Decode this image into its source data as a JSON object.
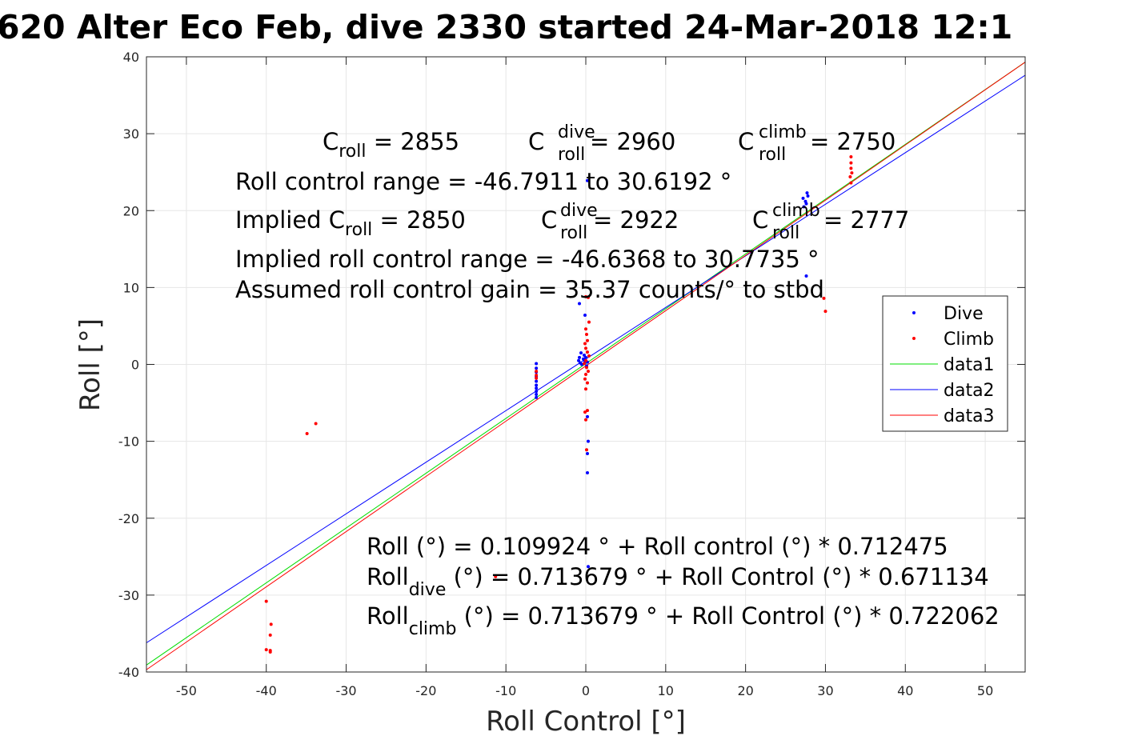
{
  "chart_data": {
    "type": "scatter",
    "title": "620 Alter Eco Feb, dive 2330 started 24-Mar-2018 12:1",
    "xlabel": "Roll Control [°]",
    "ylabel": "Roll [°]",
    "xlim": [
      -55,
      55
    ],
    "ylim": [
      -40,
      40
    ],
    "xticks": [
      -50,
      -40,
      -30,
      -20,
      -10,
      0,
      10,
      20,
      30,
      40,
      50
    ],
    "yticks": [
      -40,
      -30,
      -20,
      -10,
      0,
      10,
      20,
      30,
      40
    ],
    "grid": true,
    "legend_position": "right",
    "legend": [
      "Dive",
      "Climb",
      "data1",
      "data2",
      "data3"
    ],
    "colors": {
      "dive": "#0000ff",
      "climb": "#ff0000",
      "data1": "#00dd00",
      "data2": "#0000ff",
      "data3": "#ff0000",
      "grid": "#e6e6e6",
      "axis": "#262626"
    },
    "series": [
      {
        "name": "Dive",
        "kind": "points",
        "points": [
          [
            -6.2,
            0.1
          ],
          [
            -6.2,
            -0.5
          ],
          [
            -6.2,
            -1.0
          ],
          [
            -6.2,
            -1.6
          ],
          [
            -6.2,
            -2.2
          ],
          [
            -6.2,
            -2.7
          ],
          [
            -6.2,
            -3.1
          ],
          [
            -6.2,
            -3.5
          ],
          [
            -6.2,
            -3.9
          ],
          [
            -6.2,
            -4.3
          ],
          [
            -0.8,
            7.9
          ],
          [
            -0.6,
            1.5
          ],
          [
            -0.8,
            0.9
          ],
          [
            -0.9,
            0.5
          ],
          [
            -0.7,
            0.2
          ],
          [
            -0.5,
            0.0
          ],
          [
            -0.3,
            0.7
          ],
          [
            -0.2,
            1.2
          ],
          [
            -0.1,
            0.4
          ],
          [
            0.0,
            0.9
          ],
          [
            0.2,
            0.3
          ],
          [
            0.1,
            -0.2
          ],
          [
            -0.1,
            6.4
          ],
          [
            0.2,
            23.9
          ],
          [
            0.2,
            -6.8
          ],
          [
            0.3,
            -10.0
          ],
          [
            0.2,
            -11.6
          ],
          [
            0.2,
            -14.1
          ],
          [
            0.3,
            -26.3
          ],
          [
            27.2,
            21.6
          ],
          [
            27.5,
            21.2
          ],
          [
            27.7,
            22.3
          ],
          [
            27.8,
            21.9
          ],
          [
            27.6,
            20.9
          ],
          [
            27.3,
            20.5
          ],
          [
            27.6,
            11.5
          ]
        ]
      },
      {
        "name": "Climb",
        "kind": "points",
        "points": [
          [
            -40.0,
            -30.8
          ],
          [
            -40.0,
            -37.1
          ],
          [
            -39.5,
            -37.4
          ],
          [
            -39.5,
            -37.2
          ],
          [
            -39.4,
            -33.8
          ],
          [
            -39.5,
            -35.2
          ],
          [
            -34.9,
            -9.0
          ],
          [
            -33.8,
            -7.7
          ],
          [
            -11.3,
            -27.6
          ],
          [
            -6.2,
            -1.4
          ],
          [
            -6.2,
            -1.8
          ],
          [
            -6.2,
            -0.9
          ],
          [
            0.0,
            8.8
          ],
          [
            0.3,
            8.7
          ],
          [
            0.4,
            5.5
          ],
          [
            0.0,
            4.6
          ],
          [
            0.1,
            3.9
          ],
          [
            0.2,
            3.1
          ],
          [
            -0.1,
            2.7
          ],
          [
            0.0,
            2.1
          ],
          [
            0.2,
            1.6
          ],
          [
            0.4,
            1.1
          ],
          [
            0.0,
            0.5
          ],
          [
            -0.2,
            0.1
          ],
          [
            0.1,
            -0.4
          ],
          [
            0.3,
            -0.9
          ],
          [
            0.0,
            -1.3
          ],
          [
            -0.1,
            -1.9
          ],
          [
            0.2,
            -2.4
          ],
          [
            0.0,
            -3.2
          ],
          [
            -0.1,
            -6.2
          ],
          [
            0.2,
            -6.0
          ],
          [
            0.0,
            -7.2
          ],
          [
            0.1,
            -11.1
          ],
          [
            29.8,
            8.6
          ],
          [
            30.0,
            6.9
          ],
          [
            33.2,
            27.0
          ],
          [
            33.2,
            26.2
          ],
          [
            33.2,
            25.5
          ],
          [
            33.3,
            24.9
          ],
          [
            33.1,
            24.4
          ],
          [
            33.2,
            23.6
          ]
        ]
      },
      {
        "name": "data1",
        "kind": "line",
        "points": [
          [
            -55,
            -39.1
          ],
          [
            55,
            39.3
          ]
        ]
      },
      {
        "name": "data2",
        "kind": "line",
        "points": [
          [
            -55,
            -36.2
          ],
          [
            55,
            37.6
          ]
        ]
      },
      {
        "name": "data3",
        "kind": "line",
        "points": [
          [
            -55,
            -39.7
          ],
          [
            55,
            39.3
          ]
        ]
      }
    ],
    "annotations": {
      "c_roll": {
        "base": "C",
        "sub": "roll",
        "rest": " = 2855"
      },
      "c_dive": {
        "base": "C",
        "sup": "dive",
        "sub": "roll",
        "rest": " = 2960"
      },
      "c_climb": {
        "base": "C",
        "sup": "climb",
        "sub": "roll",
        "rest": " = 2750"
      },
      "range": "Roll control range = -46.7911 to 30.6192 °",
      "implied_c": {
        "base": "Implied C",
        "sub": "roll",
        "rest": " = 2850"
      },
      "implied_dive": {
        "base": "C",
        "sup": "dive",
        "sub": "roll",
        "rest": " = 2922"
      },
      "implied_climb": {
        "base": "C",
        "sup": "climb",
        "sub": "roll",
        "rest": " = 2777"
      },
      "implied_range": "Implied roll control range = -46.6368 to 30.7735 °",
      "gain": "Assumed roll control gain = 35.37 counts/° to stbd",
      "eq1": "Roll (°) = 0.109924 ° + Roll control (°) * 0.712475",
      "eq2": {
        "base": "Roll",
        "sub": "dive",
        "rest": " (°) = 0.713679 ° + Roll Control (°) * 0.671134"
      },
      "eq3": {
        "base": "Roll",
        "sub": "climb",
        "rest": " (°) = 0.713679 ° + Roll Control (°) * 0.722062"
      }
    }
  }
}
